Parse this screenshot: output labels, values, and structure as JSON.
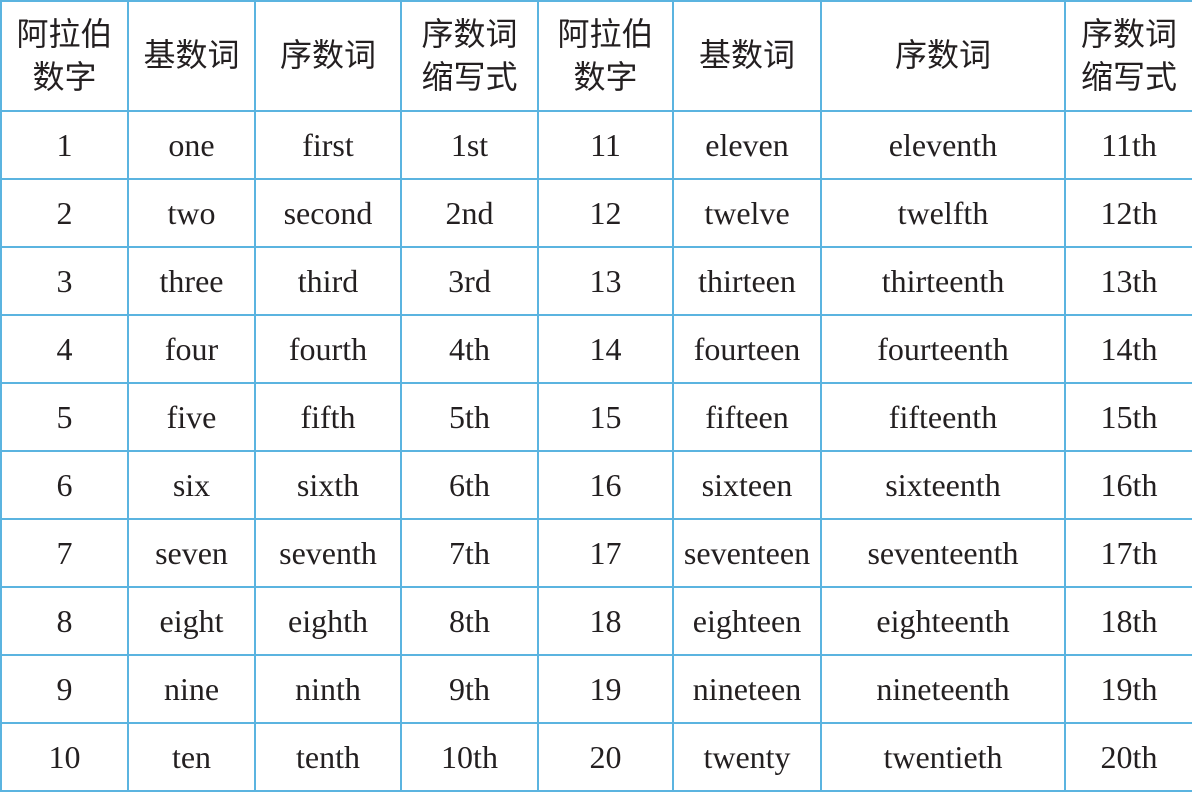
{
  "table": {
    "header": [
      "阿拉伯数字",
      "基数词",
      "序数词",
      "序数词缩写式",
      "阿拉伯数字",
      "基数词",
      "序数词",
      "序数词缩写式"
    ],
    "rows": [
      [
        "1",
        "one",
        "first",
        "1st",
        "11",
        "eleven",
        "eleventh",
        "11th"
      ],
      [
        "2",
        "two",
        "second",
        "2nd",
        "12",
        "twelve",
        "twelfth",
        "12th"
      ],
      [
        "3",
        "three",
        "third",
        "3rd",
        "13",
        "thirteen",
        "thirteenth",
        "13th"
      ],
      [
        "4",
        "four",
        "fourth",
        "4th",
        "14",
        "fourteen",
        "fourteenth",
        "14th"
      ],
      [
        "5",
        "five",
        "fifth",
        "5th",
        "15",
        "fifteen",
        "fifteenth",
        "15th"
      ],
      [
        "6",
        "six",
        "sixth",
        "6th",
        "16",
        "sixteen",
        "sixteenth",
        "16th"
      ],
      [
        "7",
        "seven",
        "seventh",
        "7th",
        "17",
        "seventeen",
        "seventeenth",
        "17th"
      ],
      [
        "8",
        "eight",
        "eighth",
        "8th",
        "18",
        "eighteen",
        "eighteenth",
        "18th"
      ],
      [
        "9",
        "nine",
        "ninth",
        "9th",
        "19",
        "nineteen",
        "nineteenth",
        "19th"
      ],
      [
        "10",
        "ten",
        "tenth",
        "10th",
        "20",
        "twenty",
        "twentieth",
        "20th"
      ]
    ]
  }
}
